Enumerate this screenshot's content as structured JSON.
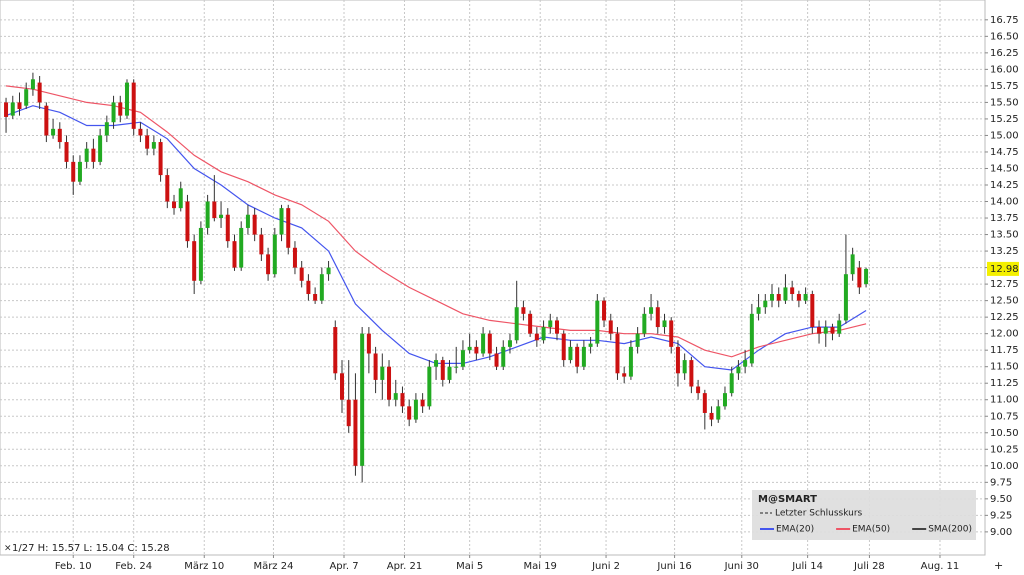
{
  "chart_data": {
    "type": "candlestick",
    "info": "1/27 H: 15.57 L: 15.04 C: 15.28",
    "brand": "M@SMART",
    "last_close_label": "Letzter Schlusskurs",
    "up_color": "#22aa22",
    "down_color": "#cc1111",
    "grid": true,
    "xlim": [
      -0.9,
      145.7
    ],
    "xticks": [
      {
        "value": 10,
        "label": "Feb. 10"
      },
      {
        "value": 19,
        "label": "Feb. 24"
      },
      {
        "value": 29.5,
        "label": "März 10"
      },
      {
        "value": 39.8,
        "label": "März 24"
      },
      {
        "value": 50.3,
        "label": "Apr. 7"
      },
      {
        "value": 59.3,
        "label": "Apr. 21"
      },
      {
        "value": 69,
        "label": "Mai 5"
      },
      {
        "value": 79.5,
        "label": "Mai 19"
      },
      {
        "value": 89.3,
        "label": "Juni 2"
      },
      {
        "value": 99.5,
        "label": "Juni 16"
      },
      {
        "value": 109.5,
        "label": "Juni 30"
      },
      {
        "value": 119.3,
        "label": "Juli 14"
      },
      {
        "value": 128.5,
        "label": "Juli 28"
      },
      {
        "value": 139,
        "label": "Aug. 11"
      }
    ],
    "ylim": [
      8.65,
      17.05
    ],
    "yticks": [
      {
        "value": 9,
        "label": "9.00"
      },
      {
        "value": 9.25,
        "label": "9.25"
      },
      {
        "value": 9.5,
        "label": "9.50"
      },
      {
        "value": 9.75,
        "label": "9.75"
      },
      {
        "value": 10,
        "label": "10.00"
      },
      {
        "value": 10.25,
        "label": "10.25"
      },
      {
        "value": 10.5,
        "label": "10.50"
      },
      {
        "value": 10.75,
        "label": "10.75"
      },
      {
        "value": 11,
        "label": "11.00"
      },
      {
        "value": 11.25,
        "label": "11.25"
      },
      {
        "value": 11.5,
        "label": "11.50"
      },
      {
        "value": 11.75,
        "label": "11.75"
      },
      {
        "value": 12,
        "label": "12.00"
      },
      {
        "value": 12.25,
        "label": "12.25"
      },
      {
        "value": 12.5,
        "label": "12.50"
      },
      {
        "value": 12.75,
        "label": "12.75"
      },
      {
        "value": 13,
        "label": "13.00"
      },
      {
        "value": 13.25,
        "label": "13.25"
      },
      {
        "value": 13.5,
        "label": "13.50"
      },
      {
        "value": 13.75,
        "label": "13.75"
      },
      {
        "value": 14,
        "label": "14.00"
      },
      {
        "value": 14.25,
        "label": "14.25"
      },
      {
        "value": 14.5,
        "label": "14.50"
      },
      {
        "value": 14.75,
        "label": "14.75"
      },
      {
        "value": 15,
        "label": "15.00"
      },
      {
        "value": 15.25,
        "label": "15.25"
      },
      {
        "value": 15.5,
        "label": "15.50"
      },
      {
        "value": 15.75,
        "label": "15.75"
      },
      {
        "value": 16,
        "label": "16.00"
      },
      {
        "value": 16.25,
        "label": "16.25"
      },
      {
        "value": 16.5,
        "label": "16.50"
      },
      {
        "value": 16.75,
        "label": "16.75"
      }
    ],
    "ohlc": [
      [
        15.5,
        15.57,
        15.04,
        15.28
      ],
      [
        15.3,
        15.6,
        15.25,
        15.5
      ],
      [
        15.5,
        15.65,
        15.3,
        15.4
      ],
      [
        15.45,
        15.8,
        15.4,
        15.7
      ],
      [
        15.7,
        15.95,
        15.6,
        15.85
      ],
      [
        15.8,
        15.9,
        15.4,
        15.5
      ],
      [
        15.45,
        15.5,
        14.9,
        15.0
      ],
      [
        15.0,
        15.25,
        14.95,
        15.1
      ],
      [
        15.1,
        15.2,
        14.8,
        14.9
      ],
      [
        14.9,
        15.0,
        14.5,
        14.6
      ],
      [
        14.6,
        14.7,
        14.1,
        14.3
      ],
      [
        14.3,
        14.7,
        14.25,
        14.6
      ],
      [
        14.6,
        14.9,
        14.5,
        14.8
      ],
      [
        14.8,
        14.95,
        14.5,
        14.6
      ],
      [
        14.6,
        15.1,
        14.55,
        15.0
      ],
      [
        15.0,
        15.3,
        14.9,
        15.2
      ],
      [
        15.2,
        15.6,
        15.1,
        15.5
      ],
      [
        15.5,
        15.6,
        15.2,
        15.3
      ],
      [
        15.3,
        15.85,
        15.25,
        15.8
      ],
      [
        15.8,
        15.85,
        15.0,
        15.1
      ],
      [
        15.1,
        15.2,
        14.9,
        15.0
      ],
      [
        15.0,
        15.1,
        14.7,
        14.8
      ],
      [
        14.8,
        15.0,
        14.7,
        14.9
      ],
      [
        14.9,
        14.95,
        14.3,
        14.4
      ],
      [
        14.4,
        14.5,
        13.9,
        14.0
      ],
      [
        14.0,
        14.1,
        13.8,
        13.9
      ],
      [
        13.9,
        14.3,
        13.85,
        14.2
      ],
      [
        14.0,
        14.1,
        13.3,
        13.4
      ],
      [
        13.4,
        13.5,
        12.6,
        12.8
      ],
      [
        12.8,
        13.7,
        12.75,
        13.6
      ],
      [
        13.6,
        14.1,
        13.5,
        14.0
      ],
      [
        14.0,
        14.4,
        13.7,
        13.75
      ],
      [
        13.75,
        14.0,
        13.6,
        13.8
      ],
      [
        13.8,
        13.9,
        13.3,
        13.4
      ],
      [
        13.4,
        13.5,
        12.95,
        13.0
      ],
      [
        13.0,
        13.7,
        12.95,
        13.6
      ],
      [
        13.6,
        13.95,
        13.5,
        13.8
      ],
      [
        13.8,
        13.9,
        13.4,
        13.5
      ],
      [
        13.5,
        13.6,
        13.1,
        13.2
      ],
      [
        13.2,
        13.3,
        12.8,
        12.9
      ],
      [
        12.9,
        13.6,
        12.85,
        13.5
      ],
      [
        13.5,
        13.95,
        13.4,
        13.9
      ],
      [
        13.9,
        13.95,
        13.2,
        13.3
      ],
      [
        13.3,
        13.4,
        12.9,
        13.0
      ],
      [
        13.0,
        13.1,
        12.7,
        12.8
      ],
      [
        12.8,
        12.9,
        12.5,
        12.6
      ],
      [
        12.6,
        12.7,
        12.45,
        12.5
      ],
      [
        12.5,
        13.0,
        12.45,
        12.9
      ],
      [
        12.9,
        13.1,
        12.8,
        13.0
      ],
      [
        12.1,
        12.2,
        11.3,
        11.4
      ],
      [
        11.4,
        11.6,
        10.8,
        11.0
      ],
      [
        11.0,
        11.6,
        10.5,
        10.6
      ],
      [
        11.0,
        11.4,
        9.85,
        10.0
      ],
      [
        10.0,
        12.1,
        9.75,
        12.0
      ],
      [
        12.0,
        12.1,
        11.4,
        11.7
      ],
      [
        11.7,
        11.8,
        11.1,
        11.3
      ],
      [
        11.3,
        11.7,
        11.0,
        11.5
      ],
      [
        11.5,
        11.6,
        10.9,
        11.0
      ],
      [
        11.0,
        11.3,
        10.9,
        11.1
      ],
      [
        11.1,
        11.2,
        10.8,
        10.9
      ],
      [
        10.9,
        11.0,
        10.6,
        10.7
      ],
      [
        10.7,
        11.1,
        10.65,
        11.0
      ],
      [
        11.0,
        11.1,
        10.8,
        10.9
      ],
      [
        10.9,
        11.6,
        10.85,
        11.5
      ],
      [
        11.5,
        11.7,
        11.3,
        11.6
      ],
      [
        11.6,
        11.65,
        11.2,
        11.3
      ],
      [
        11.3,
        11.6,
        11.25,
        11.5
      ],
      [
        11.5,
        11.8,
        11.4,
        11.5
      ],
      [
        11.5,
        11.9,
        11.45,
        11.75
      ],
      [
        11.75,
        12.0,
        11.7,
        11.8
      ],
      [
        11.8,
        11.9,
        11.6,
        11.7
      ],
      [
        11.7,
        12.1,
        11.65,
        12.0
      ],
      [
        12.0,
        12.05,
        11.6,
        11.7
      ],
      [
        11.7,
        11.8,
        11.45,
        11.5
      ],
      [
        11.5,
        11.9,
        11.45,
        11.8
      ],
      [
        11.8,
        12.0,
        11.7,
        11.9
      ],
      [
        11.9,
        12.8,
        11.85,
        12.4
      ],
      [
        12.4,
        12.5,
        12.2,
        12.3
      ],
      [
        12.3,
        12.35,
        11.95,
        12.0
      ],
      [
        12.0,
        12.1,
        11.8,
        11.9
      ],
      [
        11.9,
        12.2,
        11.85,
        12.1
      ],
      [
        12.1,
        12.3,
        12.0,
        12.2
      ],
      [
        12.2,
        12.25,
        11.9,
        12.0
      ],
      [
        12.0,
        12.05,
        11.5,
        11.6
      ],
      [
        11.6,
        11.9,
        11.55,
        11.8
      ],
      [
        11.8,
        11.85,
        11.4,
        11.5
      ],
      [
        11.5,
        11.9,
        11.45,
        11.8
      ],
      [
        11.8,
        11.95,
        11.7,
        11.85
      ],
      [
        11.85,
        12.6,
        11.8,
        12.5
      ],
      [
        12.5,
        12.55,
        12.1,
        12.2
      ],
      [
        12.2,
        12.3,
        11.9,
        12.0
      ],
      [
        12.0,
        12.1,
        11.3,
        11.4
      ],
      [
        11.4,
        11.5,
        11.25,
        11.35
      ],
      [
        11.35,
        11.9,
        11.3,
        11.8
      ],
      [
        11.8,
        12.1,
        11.7,
        12.0
      ],
      [
        12.0,
        12.4,
        11.95,
        12.3
      ],
      [
        12.3,
        12.6,
        12.2,
        12.4
      ],
      [
        12.4,
        12.5,
        12.0,
        12.1
      ],
      [
        12.1,
        12.3,
        12.0,
        12.2
      ],
      [
        12.2,
        12.25,
        11.7,
        11.8
      ],
      [
        11.8,
        11.9,
        11.2,
        11.4
      ],
      [
        11.4,
        11.7,
        11.3,
        11.6
      ],
      [
        11.6,
        11.65,
        11.1,
        11.2
      ],
      [
        11.2,
        11.3,
        11.0,
        11.1
      ],
      [
        11.1,
        11.15,
        10.55,
        10.8
      ],
      [
        10.8,
        10.9,
        10.6,
        10.7
      ],
      [
        10.7,
        11.0,
        10.65,
        10.9
      ],
      [
        10.9,
        11.2,
        10.85,
        11.1
      ],
      [
        11.1,
        11.5,
        11.05,
        11.4
      ],
      [
        11.4,
        11.6,
        11.3,
        11.5
      ],
      [
        11.5,
        11.75,
        11.4,
        11.6
      ],
      [
        11.55,
        12.45,
        11.5,
        12.3
      ],
      [
        12.3,
        12.6,
        12.2,
        12.4
      ],
      [
        12.4,
        12.6,
        12.3,
        12.5
      ],
      [
        12.5,
        12.75,
        12.4,
        12.6
      ],
      [
        12.6,
        12.7,
        12.4,
        12.5
      ],
      [
        12.5,
        12.9,
        12.45,
        12.7
      ],
      [
        12.7,
        12.8,
        12.5,
        12.6
      ],
      [
        12.6,
        12.65,
        12.4,
        12.5
      ],
      [
        12.5,
        12.7,
        12.45,
        12.6
      ],
      [
        12.6,
        12.65,
        12.0,
        12.1
      ],
      [
        12.1,
        12.2,
        11.85,
        12.0
      ],
      [
        12.0,
        12.2,
        11.8,
        12.1
      ],
      [
        12.1,
        12.15,
        11.9,
        12.0
      ],
      [
        12.0,
        12.3,
        11.95,
        12.2
      ],
      [
        12.2,
        13.5,
        12.15,
        12.9
      ],
      [
        12.9,
        13.3,
        12.8,
        13.2
      ],
      [
        13.0,
        13.1,
        12.6,
        12.7
      ],
      [
        12.75,
        13.0,
        12.7,
        12.98
      ]
    ],
    "series": [
      {
        "name": "EMA(20)",
        "color": "#4455ee",
        "x": [
          0,
          4,
          8,
          12,
          16,
          20,
          24,
          28,
          32,
          36,
          40,
          44,
          48,
          52,
          56,
          60,
          64,
          68,
          72,
          76,
          80,
          84,
          88,
          92,
          96,
          100,
          104,
          108,
          112,
          116,
          120,
          124,
          128
        ],
        "values": [
          15.3,
          15.45,
          15.35,
          15.15,
          15.15,
          15.2,
          14.95,
          14.5,
          14.25,
          13.95,
          13.75,
          13.6,
          13.25,
          12.45,
          12.05,
          11.7,
          11.55,
          11.55,
          11.65,
          11.8,
          11.95,
          11.9,
          11.9,
          11.85,
          11.95,
          11.85,
          11.5,
          11.45,
          11.75,
          12.0,
          12.1,
          12.1,
          12.35
        ]
      },
      {
        "name": "EMA(50)",
        "color": "#ee5566",
        "x": [
          0,
          4,
          8,
          12,
          16,
          20,
          24,
          28,
          32,
          36,
          40,
          44,
          48,
          52,
          56,
          60,
          64,
          68,
          72,
          76,
          80,
          84,
          88,
          92,
          96,
          100,
          104,
          108,
          112,
          116,
          120,
          124,
          128
        ],
        "values": [
          15.75,
          15.7,
          15.6,
          15.5,
          15.45,
          15.35,
          15.05,
          14.7,
          14.45,
          14.3,
          14.1,
          13.95,
          13.7,
          13.25,
          12.95,
          12.7,
          12.5,
          12.3,
          12.2,
          12.15,
          12.1,
          12.05,
          12.05,
          12.0,
          12.0,
          11.95,
          11.75,
          11.65,
          11.8,
          11.9,
          12.0,
          12.05,
          12.15
        ]
      },
      {
        "name": "SMA(200)",
        "color": "#444444"
      }
    ]
  }
}
